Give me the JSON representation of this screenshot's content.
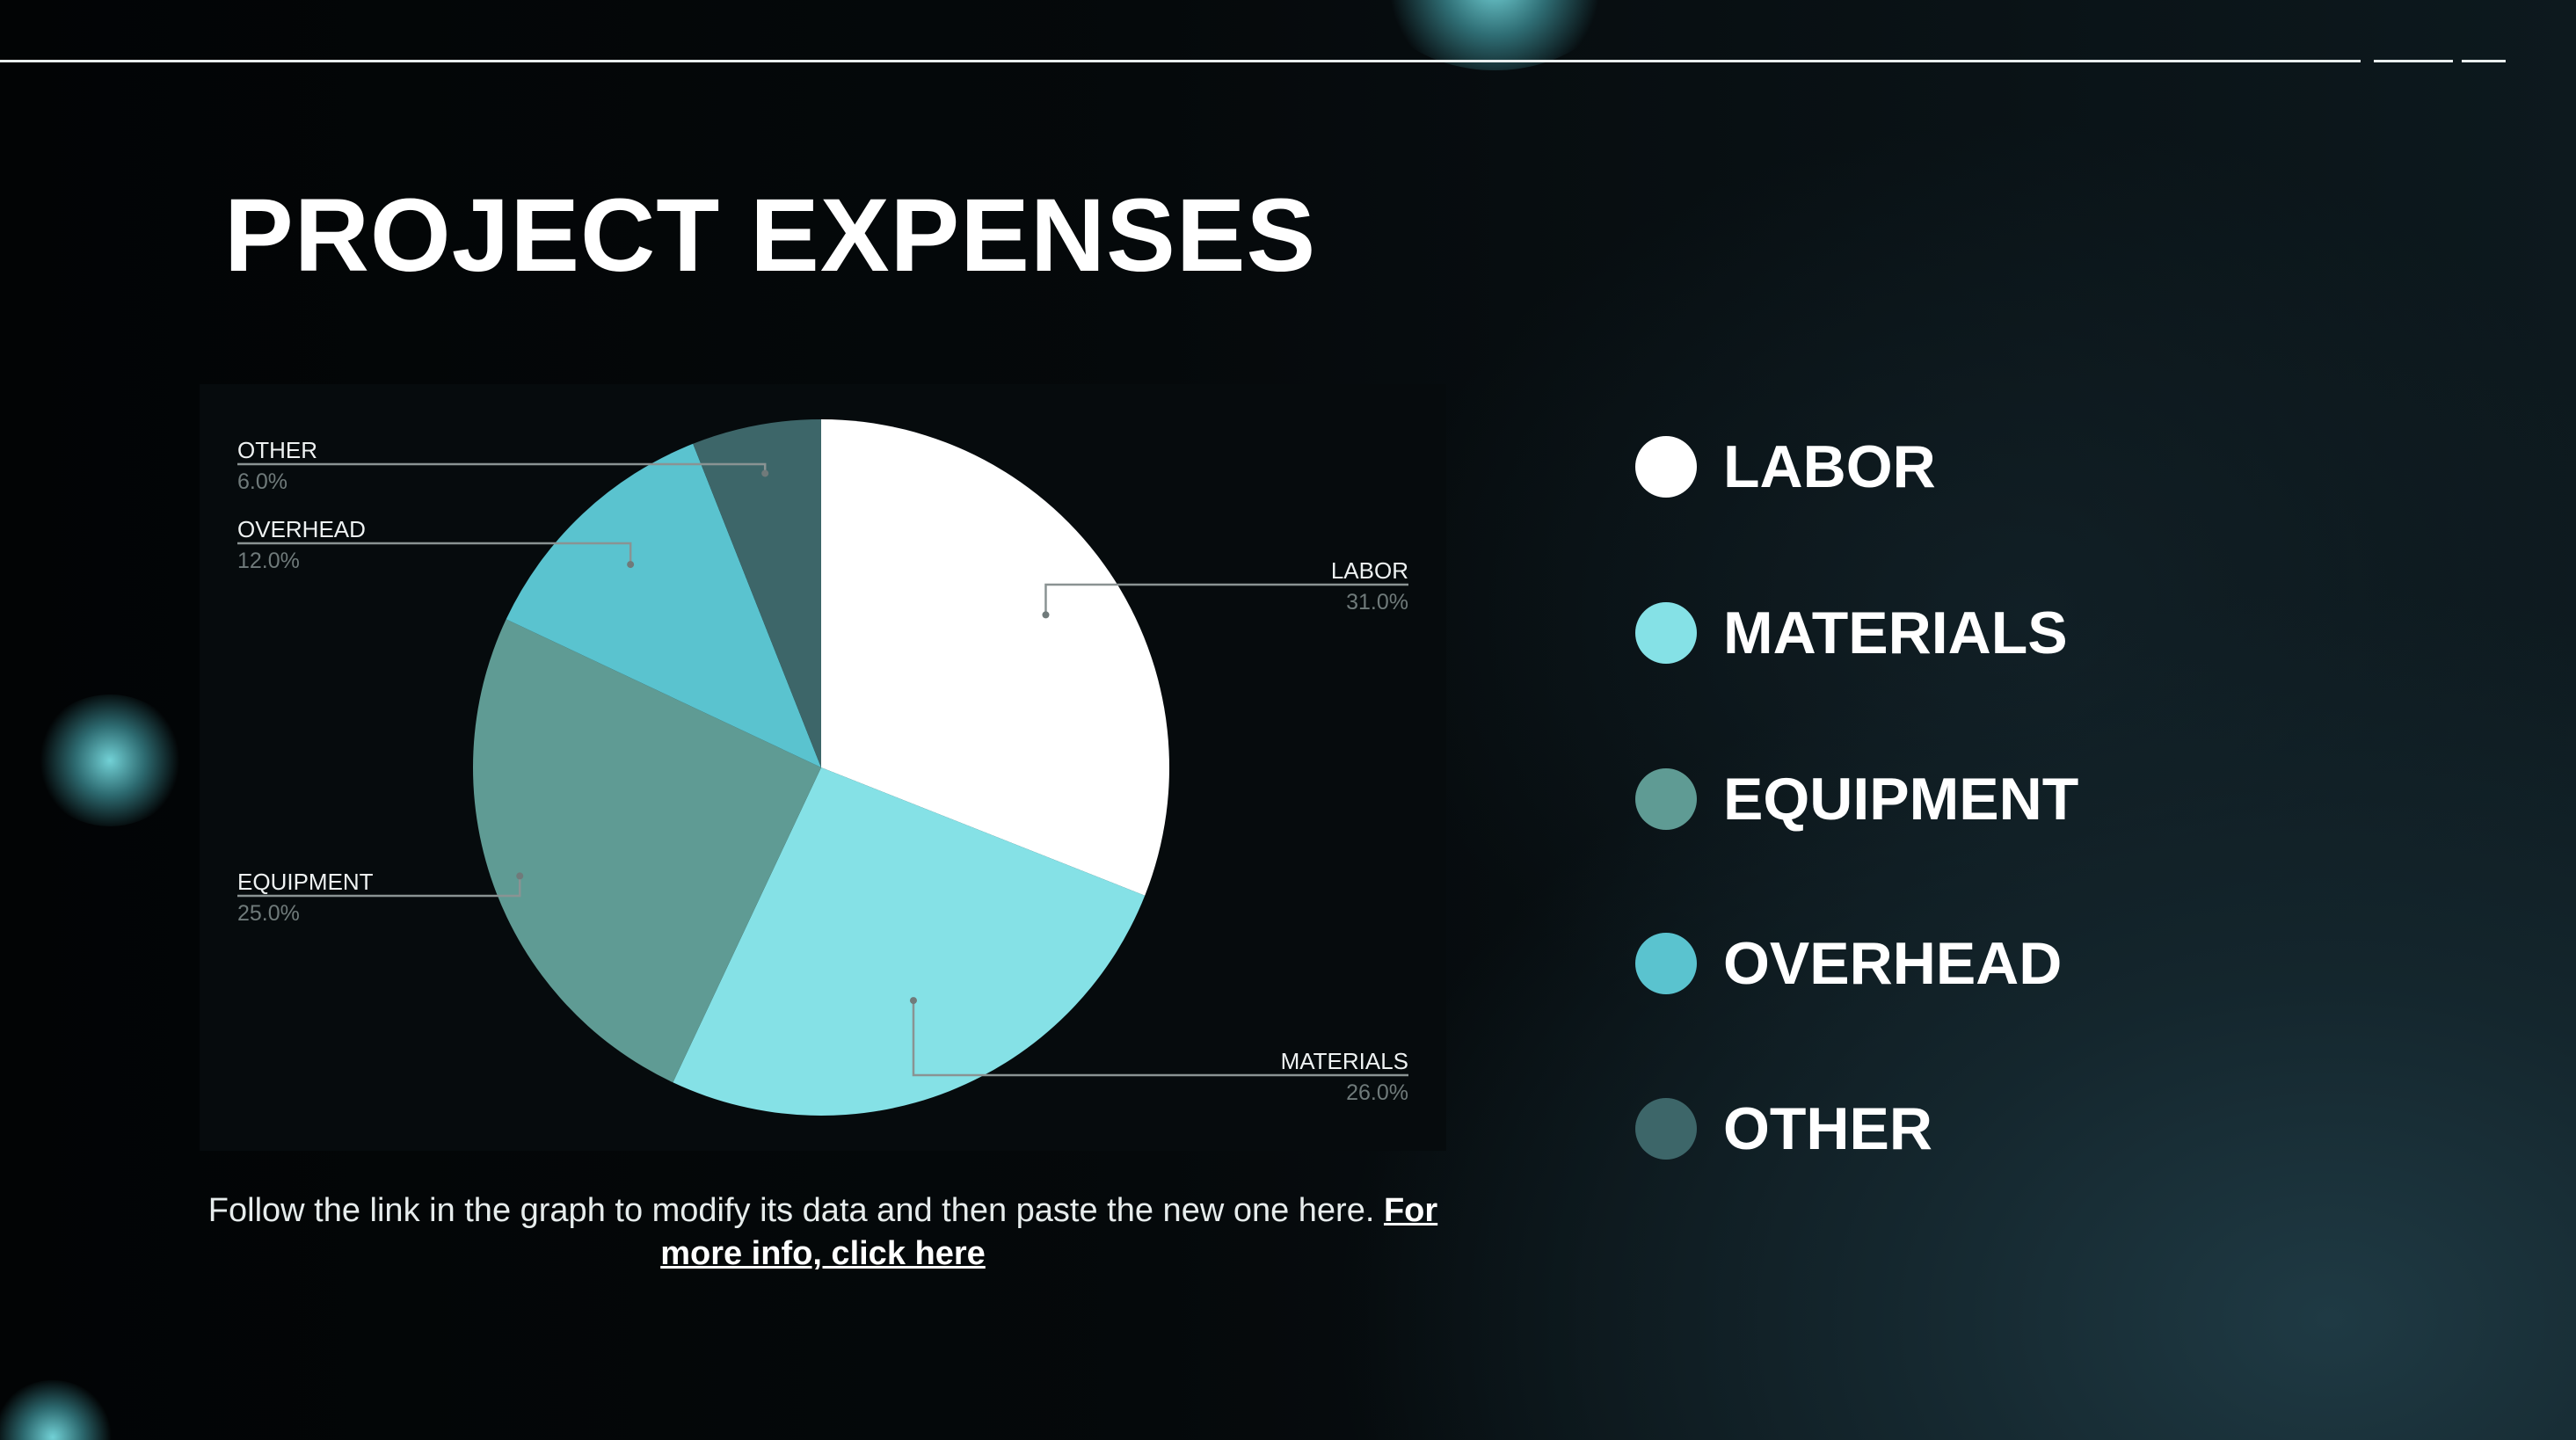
{
  "slide": {
    "title": "PROJECT EXPENSES",
    "caption_text": "Follow the link in the graph to modify its data and then paste the new one here.",
    "caption_link": "For more info, click here"
  },
  "chart_data": {
    "type": "pie",
    "categories": [
      "LABOR",
      "MATERIALS",
      "EQUIPMENT",
      "OVERHEAD",
      "OTHER"
    ],
    "values": [
      31.0,
      26.0,
      25.0,
      12.0,
      6.0
    ],
    "value_labels": [
      "31.0%",
      "26.0%",
      "25.0%",
      "12.0%",
      "6.0%"
    ],
    "colors": [
      "#ffffff",
      "#85e1e6",
      "#5f9b94",
      "#5ac3cf",
      "#3d6669"
    ],
    "start_angle": "12 o'clock",
    "direction": "clockwise",
    "legend_placement": "right"
  },
  "legend": {
    "items": [
      {
        "label": "LABOR",
        "color": "#ffffff"
      },
      {
        "label": "MATERIALS",
        "color": "#85e1e6"
      },
      {
        "label": "EQUIPMENT",
        "color": "#5f9b94"
      },
      {
        "label": "OVERHEAD",
        "color": "#5ac3cf"
      },
      {
        "label": "OTHER",
        "color": "#3d6669"
      }
    ]
  }
}
